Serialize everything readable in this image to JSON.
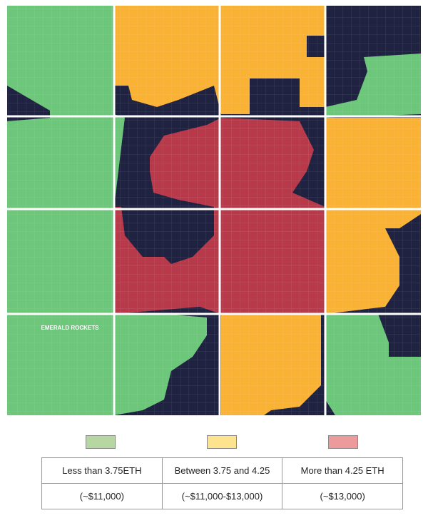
{
  "map_labels": [
    "EMERALD ROCKETS"
  ],
  "legend": [
    {
      "color": "#b6d7a2",
      "label": "Less than 3.75ETH",
      "range": "(~$11,000)"
    },
    {
      "color": "#fde38e",
      "label": "Between 3.75 and 4.25",
      "range": "(~$11,000-$13,000)"
    },
    {
      "color": "#ec9a9c",
      "label": "More than 4.25 ETH",
      "range": "(~$13,000)"
    }
  ]
}
